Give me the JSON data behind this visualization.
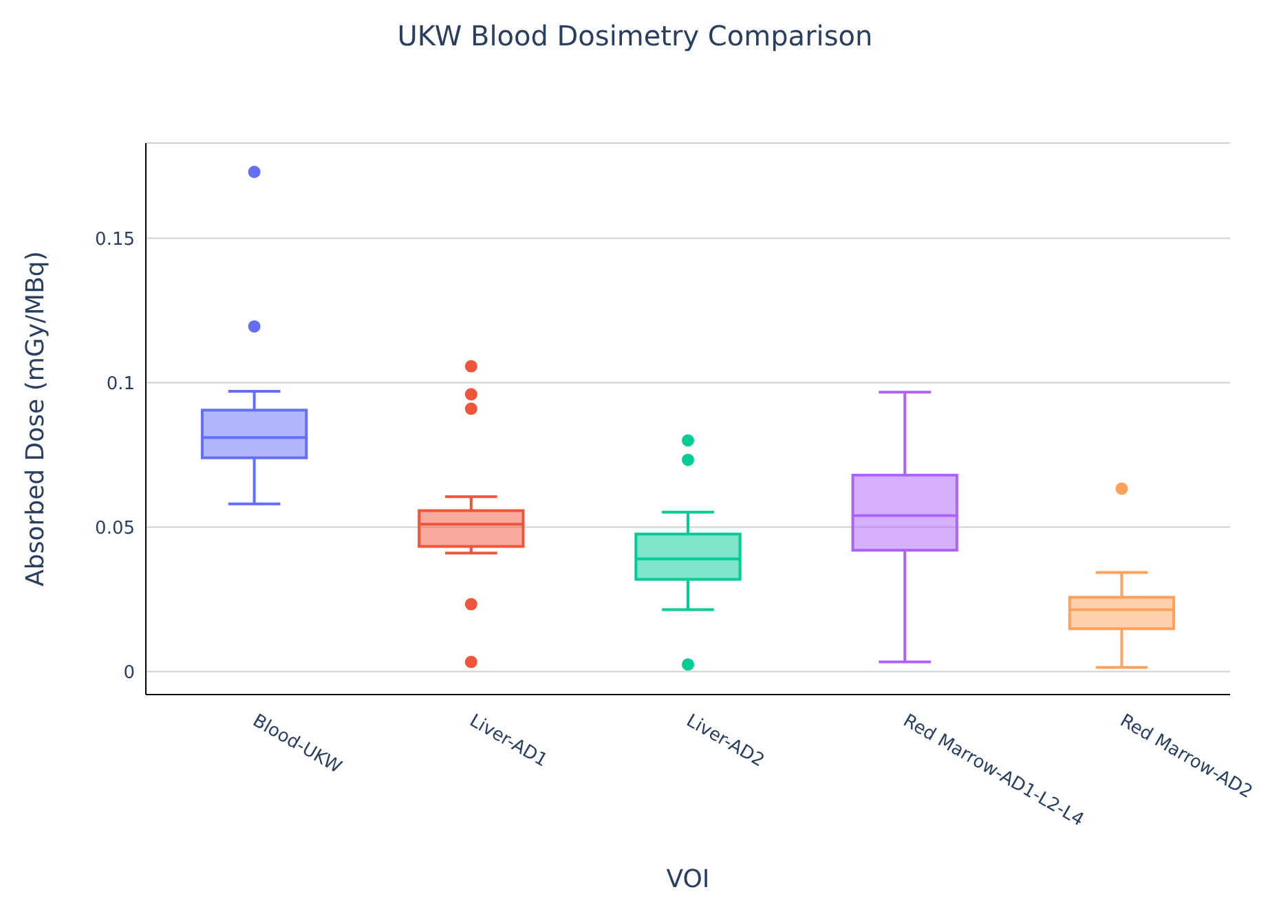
{
  "chart_data": {
    "type": "box",
    "title": "UKW Blood Dosimetry Comparison",
    "xlabel": "VOI",
    "ylabel": "Absorbed Dose (mGy/MBq)",
    "categories": [
      "Blood-UKW",
      "Liver-AD1",
      "Liver-AD2",
      "Red Marrow-AD1-L2-L4",
      "Red Marrow-AD2"
    ],
    "colors": [
      "#636efa",
      "#ef553b",
      "#00cc96",
      "#ab63fa",
      "#ffa15a"
    ],
    "boxes": [
      {
        "low": 0.058,
        "q1": 0.074,
        "median": 0.081,
        "q3": 0.0905,
        "high": 0.097,
        "outliers": [
          0.173,
          0.1195
        ]
      },
      {
        "low": 0.041,
        "q1": 0.0433,
        "median": 0.051,
        "q3": 0.0557,
        "high": 0.0605,
        "outliers": [
          0.1057,
          0.096,
          0.091,
          0.0233,
          0.0033
        ]
      },
      {
        "low": 0.0214,
        "q1": 0.0319,
        "median": 0.039,
        "q3": 0.0476,
        "high": 0.0552,
        "outliers": [
          0.08,
          0.0733,
          0.0024
        ]
      },
      {
        "low": 0.0033,
        "q1": 0.042,
        "median": 0.054,
        "q3": 0.068,
        "high": 0.0967
      },
      {
        "low": 0.0014,
        "q1": 0.0148,
        "median": 0.0214,
        "q3": 0.0257,
        "high": 0.0343,
        "outliers": [
          0.0633
        ]
      }
    ],
    "ylim": [
      -0.008,
      0.183
    ],
    "yticks": [
      0,
      0.05,
      0.1,
      0.15
    ],
    "grid": "y"
  }
}
